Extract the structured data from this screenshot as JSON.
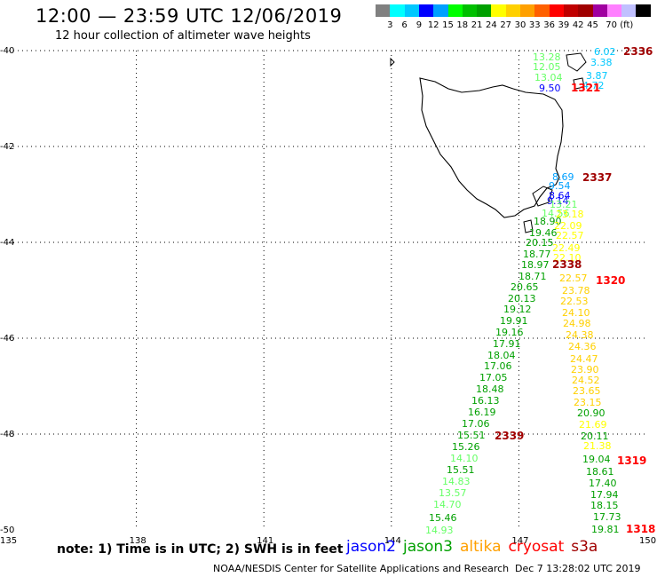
{
  "header": {
    "title": "12:00 — 23:59 UTC 12/06/2019",
    "subtitle": "12 hour collection of altimeter wave heights"
  },
  "legend": {
    "colors": [
      "#808080",
      "#00ffff",
      "#00c8ff",
      "#0000ff",
      "#00a0ff",
      "#00ff00",
      "#00c000",
      "#00a000",
      "#ffff00",
      "#ffd000",
      "#ffa000",
      "#ff6000",
      "#ff0000",
      "#c00000",
      "#a00000",
      "#a000a0",
      "#ff80ff",
      "#c0c0ff",
      "#000000"
    ],
    "labels": [
      "3",
      "6",
      "9",
      "12",
      "15",
      "18",
      "21",
      "24",
      "27",
      "30",
      "33",
      "36",
      "39",
      "42",
      "45",
      "70 (ft)"
    ]
  },
  "axes": {
    "lat_labels": [
      "-40",
      "-42",
      "-44",
      "-46",
      "-48",
      "-50"
    ],
    "lon_labels": [
      "135",
      "138",
      "141",
      "144",
      "147",
      "150"
    ]
  },
  "passes": [
    {
      "id": "2336",
      "color": "#a00000"
    },
    {
      "id": "1321",
      "color": "#ff0000"
    },
    {
      "id": "2337",
      "color": "#a00000"
    },
    {
      "id": "2338",
      "color": "#a00000"
    },
    {
      "id": "1320",
      "color": "#ff0000"
    },
    {
      "id": "2339",
      "color": "#a00000"
    },
    {
      "id": "1319",
      "color": "#ff0000"
    },
    {
      "id": "1318",
      "color": "#ff0000"
    }
  ],
  "track_values": [
    {
      "v": "6.02",
      "c": "#00c8ff"
    },
    {
      "v": "3.38",
      "c": "#00c8ff"
    },
    {
      "v": "3.87",
      "c": "#00c8ff"
    },
    {
      "v": "4.72",
      "c": "#00c8ff"
    },
    {
      "v": "13.28",
      "c": "#66ff66"
    },
    {
      "v": "12.05",
      "c": "#66ff66"
    },
    {
      "v": "13.04",
      "c": "#66ff66"
    },
    {
      "v": "9.50",
      "c": "#0000ff"
    },
    {
      "v": "8.69",
      "c": "#00a0ff"
    },
    {
      "v": "9.54",
      "c": "#00a0ff"
    },
    {
      "v": "8.64",
      "c": "#0000ff"
    },
    {
      "v": "9.14",
      "c": "#0000ff"
    },
    {
      "v": "13.21",
      "c": "#66ff66"
    },
    {
      "v": "14.56",
      "c": "#66ff66"
    },
    {
      "v": "18.90",
      "c": "#00a000"
    },
    {
      "v": "19.46",
      "c": "#00a000"
    },
    {
      "v": "20.15",
      "c": "#00a000"
    },
    {
      "v": "18.77",
      "c": "#00a000"
    },
    {
      "v": "18.97",
      "c": "#00a000"
    },
    {
      "v": "18.71",
      "c": "#00a000"
    },
    {
      "v": "20.65",
      "c": "#00a000"
    },
    {
      "v": "20.13",
      "c": "#00a000"
    },
    {
      "v": "19.12",
      "c": "#00a000"
    },
    {
      "v": "19.91",
      "c": "#00a000"
    },
    {
      "v": "19.16",
      "c": "#00a000"
    },
    {
      "v": "17.91",
      "c": "#00a000"
    },
    {
      "v": "18.04",
      "c": "#00a000"
    },
    {
      "v": "17.06",
      "c": "#00a000"
    },
    {
      "v": "17.05",
      "c": "#00a000"
    },
    {
      "v": "18.48",
      "c": "#00a000"
    },
    {
      "v": "16.13",
      "c": "#00a000"
    },
    {
      "v": "16.19",
      "c": "#00a000"
    },
    {
      "v": "17.06",
      "c": "#00a000"
    },
    {
      "v": "15.51",
      "c": "#00a000"
    },
    {
      "v": "15.26",
      "c": "#00a000"
    },
    {
      "v": "14.10",
      "c": "#66ff66"
    },
    {
      "v": "15.51",
      "c": "#00a000"
    },
    {
      "v": "14.83",
      "c": "#66ff66"
    },
    {
      "v": "13.57",
      "c": "#66ff66"
    },
    {
      "v": "14.70",
      "c": "#66ff66"
    },
    {
      "v": "15.46",
      "c": "#00a000"
    },
    {
      "v": "14.93",
      "c": "#66ff66"
    },
    {
      "v": "23.18",
      "c": "#ffff00"
    },
    {
      "v": "22.09",
      "c": "#ffff00"
    },
    {
      "v": "22.57",
      "c": "#ffff00"
    },
    {
      "v": "22.49",
      "c": "#ffff00"
    },
    {
      "v": "22.10",
      "c": "#ffff00"
    },
    {
      "v": "22.57",
      "c": "#ffd000"
    },
    {
      "v": "23.78",
      "c": "#ffd000"
    },
    {
      "v": "22.53",
      "c": "#ffd000"
    },
    {
      "v": "24.10",
      "c": "#ffd000"
    },
    {
      "v": "24.98",
      "c": "#ffd000"
    },
    {
      "v": "24.38",
      "c": "#ffd000"
    },
    {
      "v": "24.36",
      "c": "#ffd000"
    },
    {
      "v": "24.47",
      "c": "#ffd000"
    },
    {
      "v": "23.90",
      "c": "#ffd000"
    },
    {
      "v": "24.52",
      "c": "#ffd000"
    },
    {
      "v": "23.65",
      "c": "#ffd000"
    },
    {
      "v": "23.15",
      "c": "#ffd000"
    },
    {
      "v": "20.90",
      "c": "#00a000"
    },
    {
      "v": "21.69",
      "c": "#ffff00"
    },
    {
      "v": "20.11",
      "c": "#00a000"
    },
    {
      "v": "21.38",
      "c": "#ffff00"
    },
    {
      "v": "19.04",
      "c": "#00a000"
    },
    {
      "v": "18.61",
      "c": "#00a000"
    },
    {
      "v": "17.40",
      "c": "#00a000"
    },
    {
      "v": "17.94",
      "c": "#00a000"
    },
    {
      "v": "18.15",
      "c": "#00a000"
    },
    {
      "v": "17.73",
      "c": "#00a000"
    },
    {
      "v": "19.81",
      "c": "#00a000"
    }
  ],
  "notes": {
    "note": "note: 1) Time is in UTC; 2) SWH is in feet",
    "satellites": [
      {
        "name": "jason2",
        "color": "#0000ff"
      },
      {
        "name": "jason3",
        "color": "#00a000"
      },
      {
        "name": "altika",
        "color": "#ffa000"
      },
      {
        "name": "cryosat",
        "color": "#ff0000"
      },
      {
        "name": "s3a",
        "color": "#a00000"
      }
    ]
  },
  "footer": {
    "center": "NOAA/NESDIS Center for Satellite Applications and Research",
    "date": "Dec  7 13:28:02 UTC 2019"
  }
}
